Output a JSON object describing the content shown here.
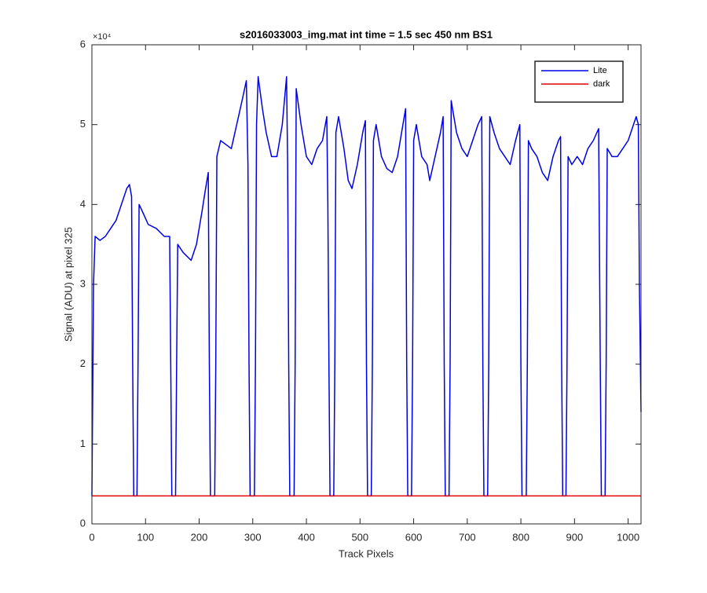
{
  "chart_data": {
    "type": "line",
    "title": "s2016033003_img.mat int time = 1.5 sec  450 nm BS1",
    "x_label": "Track Pixels",
    "y_label": "Signal (ADU) at pixel 325",
    "y_exponent_label": "×10⁴",
    "xlim": [
      0,
      1024
    ],
    "ylim": [
      0,
      6
    ],
    "xticks": [
      0,
      100,
      200,
      300,
      400,
      500,
      600,
      700,
      800,
      900,
      1000
    ],
    "yticks": [
      0,
      1,
      2,
      3,
      4,
      5,
      6
    ],
    "grid": false,
    "legend": "northeast",
    "series": [
      {
        "name": "Lite",
        "color": "#0000e6",
        "x": [
          0,
          3,
          6,
          15,
          25,
          35,
          45,
          55,
          65,
          70,
          74,
          76,
          78,
          84,
          86,
          88,
          95,
          105,
          120,
          135,
          145,
          147,
          149,
          156,
          158,
          160,
          170,
          185,
          195,
          205,
          212,
          217,
          219,
          221,
          229,
          231,
          233,
          240,
          250,
          260,
          270,
          280,
          288,
          291,
          293,
          295,
          303,
          305,
          307,
          310,
          318,
          325,
          335,
          345,
          355,
          363,
          365,
          367,
          369,
          377,
          379,
          381,
          390,
          400,
          410,
          420,
          430,
          438,
          440,
          442,
          444,
          451,
          453,
          455,
          460,
          470,
          478,
          485,
          495,
          505,
          510,
          512,
          514,
          521,
          523,
          525,
          530,
          540,
          550,
          560,
          570,
          580,
          585,
          587,
          589,
          596,
          598,
          600,
          605,
          615,
          625,
          630,
          640,
          650,
          655,
          657,
          659,
          666,
          668,
          670,
          680,
          690,
          700,
          710,
          720,
          727,
          729,
          731,
          738,
          740,
          742,
          750,
          760,
          770,
          780,
          790,
          798,
          800,
          802,
          810,
          812,
          814,
          820,
          830,
          840,
          850,
          860,
          870,
          874,
          876,
          878,
          884,
          886,
          888,
          895,
          905,
          915,
          925,
          935,
          945,
          948,
          950,
          957,
          959,
          961,
          970,
          980,
          990,
          1000,
          1010,
          1015,
          1019,
          1021,
          1024
        ],
        "values": [
          0.35,
          3.0,
          3.6,
          3.55,
          3.6,
          3.7,
          3.8,
          4.0,
          4.2,
          4.25,
          4.1,
          2.0,
          0.35,
          0.35,
          2.0,
          4.0,
          3.9,
          3.75,
          3.7,
          3.6,
          3.6,
          2.0,
          0.35,
          0.35,
          2.0,
          3.5,
          3.4,
          3.3,
          3.5,
          3.9,
          4.2,
          4.4,
          2.0,
          0.35,
          0.35,
          2.0,
          4.6,
          4.8,
          4.75,
          4.7,
          5.0,
          5.3,
          5.55,
          4.5,
          2.0,
          0.35,
          0.35,
          2.0,
          5.0,
          5.6,
          5.2,
          4.9,
          4.6,
          4.6,
          5.0,
          5.6,
          4.5,
          2.0,
          0.35,
          0.35,
          2.0,
          5.45,
          5.0,
          4.6,
          4.5,
          4.7,
          4.8,
          5.1,
          4.0,
          2.0,
          0.35,
          0.35,
          2.0,
          4.9,
          5.1,
          4.7,
          4.3,
          4.2,
          4.5,
          4.9,
          5.05,
          2.0,
          0.35,
          0.35,
          2.0,
          4.8,
          5.0,
          4.6,
          4.45,
          4.4,
          4.6,
          5.0,
          5.2,
          2.0,
          0.35,
          0.35,
          2.0,
          4.8,
          5.0,
          4.6,
          4.5,
          4.3,
          4.6,
          4.9,
          5.1,
          2.0,
          0.35,
          0.35,
          2.0,
          5.3,
          4.9,
          4.7,
          4.6,
          4.8,
          5.0,
          5.1,
          2.0,
          0.35,
          0.35,
          2.0,
          5.1,
          4.9,
          4.7,
          4.6,
          4.5,
          4.8,
          5.0,
          2.0,
          0.35,
          0.35,
          2.0,
          4.8,
          4.7,
          4.6,
          4.4,
          4.3,
          4.6,
          4.8,
          4.85,
          2.0,
          0.35,
          0.35,
          2.0,
          4.6,
          4.5,
          4.6,
          4.5,
          4.7,
          4.8,
          4.95,
          2.0,
          0.35,
          0.35,
          2.0,
          4.7,
          4.6,
          4.6,
          4.7,
          4.8,
          5.0,
          5.1,
          5.0,
          3.0,
          1.4
        ]
      },
      {
        "name": "dark",
        "color": "#e60000",
        "x": [
          0,
          1024
        ],
        "values": [
          0.35,
          0.35
        ]
      }
    ]
  }
}
